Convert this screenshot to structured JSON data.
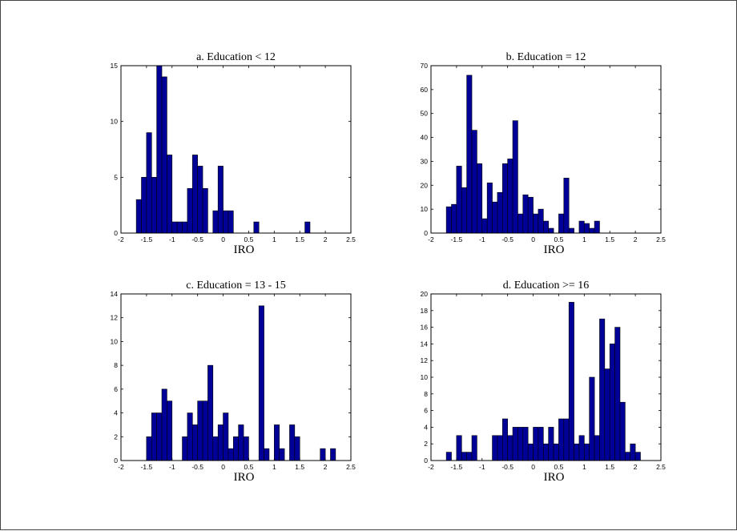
{
  "chart_data": [
    {
      "type": "bar",
      "title": "a. Education < 12",
      "xlabel": "IRO",
      "ylabel": "",
      "xlim": [
        -2,
        2.5
      ],
      "ylim": [
        0,
        15
      ],
      "xticks": [
        "-2",
        "-1.5",
        "-1",
        "-0.5",
        "0",
        "0.5",
        "1",
        "1.5",
        "2",
        "2.5"
      ],
      "yticks": [
        "0",
        "5",
        "10",
        "15"
      ],
      "bin_start": -1.7,
      "bin_width": 0.1,
      "values": [
        3,
        5,
        9,
        5,
        15,
        14,
        7,
        1,
        1,
        1,
        4,
        7,
        6,
        4,
        0,
        2,
        6,
        2,
        2,
        0,
        0,
        0,
        0,
        1,
        0,
        0,
        0,
        0,
        0,
        0,
        0,
        0,
        0,
        1,
        0,
        0,
        0,
        0
      ]
    },
    {
      "type": "bar",
      "title": "b. Education = 12",
      "xlabel": "IRO",
      "ylabel": "",
      "xlim": [
        -2,
        2.5
      ],
      "ylim": [
        0,
        70
      ],
      "xticks": [
        "-2",
        "-1.5",
        "-1",
        "-0.5",
        "0",
        "0.5",
        "1",
        "1.5",
        "2",
        "2.5"
      ],
      "yticks": [
        "0",
        "10",
        "20",
        "30",
        "40",
        "50",
        "60",
        "70"
      ],
      "bin_start": -1.7,
      "bin_width": 0.1,
      "values": [
        11,
        12,
        28,
        19,
        66,
        43,
        29,
        6,
        21,
        13,
        17,
        29,
        31,
        47,
        8,
        16,
        15,
        8,
        10,
        5,
        2,
        0,
        8,
        23,
        2,
        0,
        5,
        4,
        2,
        5,
        0,
        0,
        0,
        0,
        0,
        0,
        0,
        0
      ]
    },
    {
      "type": "bar",
      "title": "c. Education = 13 - 15",
      "xlabel": "IRO",
      "ylabel": "",
      "xlim": [
        -2,
        2.5
      ],
      "ylim": [
        0,
        14
      ],
      "xticks": [
        "-2",
        "-1.5",
        "-1",
        "-0.5",
        "0",
        "0.5",
        "1",
        "1.5",
        "2",
        "2.5"
      ],
      "yticks": [
        "0",
        "2",
        "4",
        "6",
        "8",
        "10",
        "12",
        "14"
      ],
      "bin_start": -1.5,
      "bin_width": 0.1,
      "values": [
        2,
        4,
        4,
        6,
        5,
        0,
        0,
        2,
        4,
        3,
        5,
        5,
        8,
        2,
        3,
        4,
        1,
        2,
        3,
        2,
        0,
        0,
        13,
        1,
        0,
        3,
        1,
        0,
        3,
        2,
        0,
        0,
        0,
        0,
        1,
        0,
        1
      ]
    },
    {
      "type": "bar",
      "title": "d. Education >= 16",
      "xlabel": "IRO",
      "ylabel": "",
      "xlim": [
        -2,
        2.5
      ],
      "ylim": [
        0,
        20
      ],
      "xticks": [
        "-2",
        "-1.5",
        "-1",
        "-0.5",
        "0",
        "0.5",
        "1",
        "1.5",
        "2",
        "2.5"
      ],
      "yticks": [
        "0",
        "2",
        "4",
        "6",
        "8",
        "10",
        "12",
        "14",
        "16",
        "18",
        "20"
      ],
      "bin_start": -1.7,
      "bin_width": 0.1,
      "values": [
        1,
        0,
        3,
        1,
        1,
        3,
        0,
        0,
        0,
        3,
        3,
        5,
        3,
        4,
        4,
        4,
        2,
        4,
        4,
        2,
        4,
        2,
        5,
        5,
        19,
        2,
        3,
        2,
        10,
        3,
        17,
        11,
        14,
        16,
        7,
        1,
        2,
        1
      ]
    }
  ]
}
